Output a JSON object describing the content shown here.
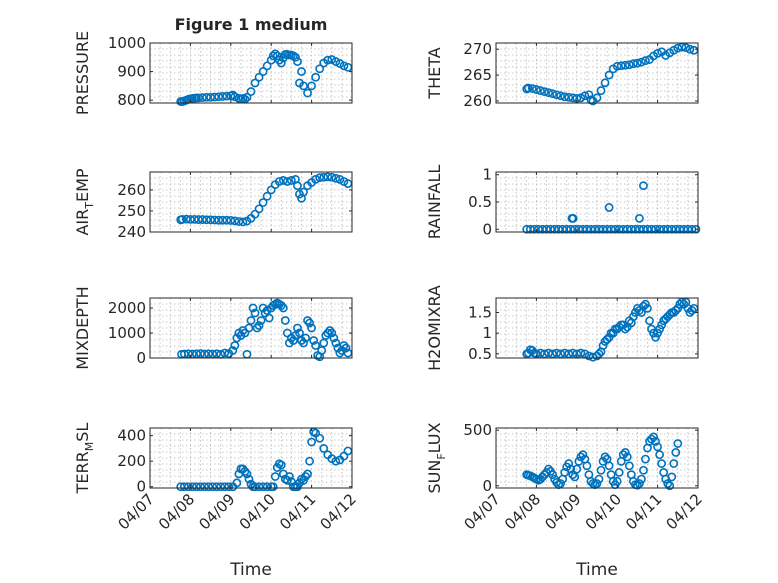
{
  "figure": {
    "title": "Figure 1 medium",
    "marker_color": "#0072BD",
    "xlabel": "Time"
  },
  "chart_data": [
    {
      "type": "scatter",
      "title": "Figure 1 medium",
      "ylabel": "PRESSURE",
      "xlabel": "",
      "xticks": [
        "04/07",
        "04/08",
        "04/09",
        "04/10",
        "04/11",
        "04/12"
      ],
      "xlim": [
        0,
        5
      ],
      "ylim": [
        790,
        1000
      ],
      "yticks": [
        800,
        900,
        1000
      ],
      "grid": true,
      "x": [
        0.76,
        0.8,
        0.85,
        0.9,
        0.95,
        1.0,
        1.05,
        1.1,
        1.15,
        1.2,
        1.3,
        1.4,
        1.5,
        1.6,
        1.7,
        1.8,
        1.9,
        2.0,
        2.05,
        2.1,
        2.2,
        2.25,
        2.3,
        2.35,
        2.4,
        2.5,
        2.6,
        2.7,
        2.8,
        2.9,
        3.0,
        3.05,
        3.1,
        3.15,
        3.2,
        3.25,
        3.3,
        3.35,
        3.4,
        3.45,
        3.5,
        3.55,
        3.6,
        3.65,
        3.7,
        3.75,
        3.8,
        3.9,
        4.0,
        4.1,
        4.2,
        4.3,
        4.4,
        4.5,
        4.6,
        4.7,
        4.8,
        4.9
      ],
      "y": [
        795,
        795,
        797,
        800,
        803,
        805,
        806,
        807,
        808,
        808,
        809,
        810,
        810,
        811,
        812,
        813,
        814,
        815,
        818,
        812,
        806,
        805,
        806,
        803,
        810,
        830,
        860,
        880,
        900,
        920,
        940,
        955,
        962,
        955,
        940,
        930,
        948,
        960,
        960,
        958,
        958,
        955,
        950,
        935,
        860,
        900,
        850,
        825,
        850,
        880,
        910,
        930,
        940,
        942,
        935,
        928,
        920,
        915
      ]
    },
    {
      "type": "scatter",
      "ylabel": "THETA",
      "xlabel": "",
      "xticks": [
        "04/07",
        "04/08",
        "04/09",
        "04/10",
        "04/11",
        "04/12"
      ],
      "xlim": [
        0,
        5
      ],
      "ylim": [
        259.6,
        271.2
      ],
      "yticks": [
        260,
        265,
        270
      ],
      "grid": true,
      "x": [
        0.76,
        0.8,
        0.9,
        1.0,
        1.1,
        1.2,
        1.3,
        1.4,
        1.5,
        1.6,
        1.7,
        1.8,
        1.9,
        2.0,
        2.1,
        2.2,
        2.3,
        2.35,
        2.4,
        2.5,
        2.6,
        2.7,
        2.8,
        2.9,
        3.0,
        3.1,
        3.2,
        3.3,
        3.4,
        3.5,
        3.6,
        3.7,
        3.8,
        3.9,
        4.0,
        4.1,
        4.2,
        4.3,
        4.4,
        4.5,
        4.6,
        4.7,
        4.8,
        4.9
      ],
      "y": [
        262.3,
        262.5,
        262.4,
        262.2,
        262.0,
        261.8,
        261.6,
        261.4,
        261.2,
        261.0,
        260.8,
        260.7,
        260.6,
        260.5,
        260.6,
        261.0,
        261.2,
        260.2,
        260.0,
        260.6,
        262.0,
        263.5,
        265.0,
        266.2,
        266.7,
        266.8,
        266.9,
        267.0,
        267.2,
        267.3,
        267.5,
        267.8,
        268.0,
        268.7,
        269.2,
        269.5,
        268.8,
        269.3,
        269.8,
        270.2,
        270.4,
        270.3,
        270.0,
        269.8
      ]
    },
    {
      "type": "scatter",
      "ylabel": "AIR_TEMP",
      "xlabel": "",
      "xticks": [
        "04/07",
        "04/08",
        "04/09",
        "04/10",
        "04/11",
        "04/12"
      ],
      "xlim": [
        0,
        5
      ],
      "ylim": [
        240,
        268.5
      ],
      "yticks": [
        240,
        250,
        260
      ],
      "grid": true,
      "x": [
        0.76,
        0.8,
        0.9,
        1.0,
        1.1,
        1.2,
        1.3,
        1.4,
        1.5,
        1.6,
        1.7,
        1.8,
        1.9,
        2.0,
        2.1,
        2.2,
        2.3,
        2.4,
        2.5,
        2.6,
        2.7,
        2.8,
        2.9,
        3.0,
        3.1,
        3.2,
        3.3,
        3.4,
        3.5,
        3.6,
        3.65,
        3.7,
        3.75,
        3.8,
        3.9,
        4.0,
        4.1,
        4.2,
        4.3,
        4.4,
        4.5,
        4.6,
        4.7,
        4.8,
        4.9
      ],
      "y": [
        245.8,
        246.0,
        246.1,
        246.0,
        246.0,
        245.9,
        245.9,
        245.8,
        245.8,
        245.7,
        245.6,
        245.6,
        245.6,
        245.5,
        245.3,
        245.0,
        244.8,
        245.2,
        246.5,
        248.5,
        251.0,
        254.0,
        257.0,
        260.0,
        262.5,
        264.0,
        264.5,
        264.0,
        264.5,
        265.0,
        262.0,
        258.0,
        256.0,
        259.0,
        262.0,
        263.5,
        265.0,
        265.8,
        266.0,
        266.2,
        266.0,
        265.5,
        265.0,
        264.0,
        263.0
      ]
    },
    {
      "type": "scatter",
      "ylabel": "RAINFALL",
      "xlabel": "",
      "xticks": [
        "04/07",
        "04/08",
        "04/09",
        "04/10",
        "04/11",
        "04/12"
      ],
      "xlim": [
        0,
        5
      ],
      "ylim": [
        -0.05,
        1.05
      ],
      "yticks": [
        0,
        0.5,
        1
      ],
      "grid": true,
      "x": [
        0.76,
        0.85,
        0.95,
        1.05,
        1.15,
        1.25,
        1.35,
        1.45,
        1.55,
        1.65,
        1.75,
        1.85,
        1.95,
        2.05,
        2.15,
        2.25,
        2.35,
        2.45,
        2.55,
        2.65,
        2.75,
        2.85,
        2.95,
        3.05,
        3.15,
        3.25,
        3.35,
        3.45,
        3.55,
        3.65,
        3.75,
        3.85,
        3.95,
        4.05,
        4.15,
        4.25,
        4.35,
        4.45,
        4.55,
        4.65,
        4.75,
        4.85,
        4.95,
        1.88,
        1.91,
        2.8,
        3.55,
        3.65
      ],
      "y": [
        0,
        0,
        0,
        0,
        0,
        0,
        0,
        0,
        0,
        0,
        0,
        0,
        0,
        0,
        0,
        0,
        0,
        0,
        0,
        0,
        0,
        0,
        0,
        0,
        0,
        0,
        0,
        0,
        0,
        0,
        0,
        0,
        0,
        0,
        0,
        0,
        0,
        0,
        0,
        0,
        0,
        0,
        0,
        0.2,
        0.2,
        0.4,
        0.2,
        0.8
      ]
    },
    {
      "type": "scatter",
      "ylabel": "MIXDEPTH",
      "xlabel": "",
      "xticks": [
        "04/07",
        "04/08",
        "04/09",
        "04/10",
        "04/11",
        "04/12"
      ],
      "xlim": [
        0,
        5
      ],
      "ylim": [
        0,
        2400
      ],
      "yticks": [
        0,
        1000,
        2000
      ],
      "grid": true,
      "x": [
        0.78,
        0.85,
        0.95,
        1.05,
        1.15,
        1.25,
        1.35,
        1.45,
        1.55,
        1.65,
        1.75,
        1.85,
        1.95,
        2.05,
        2.1,
        2.15,
        2.2,
        2.25,
        2.3,
        2.35,
        2.4,
        2.45,
        2.5,
        2.55,
        2.6,
        2.65,
        2.7,
        2.75,
        2.8,
        2.85,
        2.9,
        2.95,
        3.0,
        3.05,
        3.1,
        3.15,
        3.2,
        3.25,
        3.3,
        3.35,
        3.4,
        3.45,
        3.5,
        3.55,
        3.6,
        3.65,
        3.7,
        3.75,
        3.8,
        3.85,
        3.9,
        3.95,
        4.0,
        4.05,
        4.1,
        4.15,
        4.2,
        4.25,
        4.3,
        4.35,
        4.4,
        4.45,
        4.5,
        4.55,
        4.6,
        4.65,
        4.7,
        4.75,
        4.8,
        4.85,
        4.9
      ],
      "y": [
        150,
        160,
        170,
        160,
        170,
        180,
        160,
        170,
        160,
        170,
        150,
        200,
        180,
        300,
        500,
        800,
        1000,
        900,
        1100,
        1000,
        150,
        1200,
        1500,
        2000,
        1800,
        1200,
        1300,
        1500,
        2000,
        1800,
        1900,
        1600,
        2000,
        2100,
        2150,
        2200,
        2150,
        2100,
        2000,
        1500,
        1000,
        600,
        800,
        700,
        900,
        1200,
        1000,
        700,
        600,
        800,
        1500,
        1400,
        1200,
        700,
        500,
        100,
        50,
        300,
        600,
        900,
        1000,
        1100,
        1000,
        800,
        600,
        400,
        200,
        300,
        500,
        400,
        200
      ]
    },
    {
      "type": "scatter",
      "ylabel": "H2OMIXRA",
      "xlabel": "",
      "xticks": [
        "04/07",
        "04/08",
        "04/09",
        "04/10",
        "04/11",
        "04/12"
      ],
      "xlim": [
        0,
        5
      ],
      "ylim": [
        0.4,
        1.85
      ],
      "yticks": [
        0.5,
        1,
        1.5
      ],
      "grid": true,
      "x": [
        0.76,
        0.8,
        0.85,
        0.9,
        0.95,
        1.0,
        1.1,
        1.2,
        1.3,
        1.4,
        1.5,
        1.6,
        1.7,
        1.8,
        1.9,
        2.0,
        2.1,
        2.2,
        2.3,
        2.4,
        2.5,
        2.55,
        2.6,
        2.65,
        2.7,
        2.75,
        2.8,
        2.85,
        2.9,
        2.95,
        3.0,
        3.05,
        3.1,
        3.15,
        3.2,
        3.25,
        3.3,
        3.35,
        3.4,
        3.45,
        3.5,
        3.55,
        3.6,
        3.65,
        3.7,
        3.75,
        3.8,
        3.85,
        3.9,
        3.95,
        4.0,
        4.05,
        4.1,
        4.15,
        4.2,
        4.25,
        4.3,
        4.35,
        4.4,
        4.45,
        4.5,
        4.55,
        4.6,
        4.65,
        4.7,
        4.75,
        4.8,
        4.85,
        4.9
      ],
      "y": [
        0.5,
        0.52,
        0.6,
        0.58,
        0.52,
        0.5,
        0.52,
        0.5,
        0.52,
        0.5,
        0.52,
        0.5,
        0.52,
        0.5,
        0.52,
        0.5,
        0.52,
        0.5,
        0.45,
        0.42,
        0.45,
        0.5,
        0.55,
        0.7,
        0.8,
        0.85,
        0.9,
        1.0,
        1.0,
        1.1,
        1.1,
        1.15,
        1.2,
        1.2,
        1.1,
        1.15,
        1.3,
        1.25,
        1.4,
        1.5,
        1.6,
        1.55,
        1.5,
        1.65,
        1.7,
        1.6,
        1.3,
        1.1,
        1.0,
        0.9,
        1.0,
        1.1,
        1.2,
        1.3,
        1.35,
        1.4,
        1.45,
        1.5,
        1.5,
        1.55,
        1.6,
        1.7,
        1.75,
        1.7,
        1.75,
        1.6,
        1.5,
        1.55,
        1.6
      ]
    },
    {
      "type": "scatter",
      "ylabel": "TERR_MSL",
      "xlabel": "Time",
      "xticks": [
        "04/07",
        "04/08",
        "04/09",
        "04/10",
        "04/11",
        "04/12"
      ],
      "xlim": [
        0,
        5
      ],
      "ylim": [
        -10,
        460
      ],
      "yticks": [
        0,
        200,
        400
      ],
      "grid": true,
      "x": [
        0.76,
        0.85,
        0.95,
        1.05,
        1.15,
        1.25,
        1.35,
        1.45,
        1.55,
        1.65,
        1.75,
        1.85,
        1.95,
        2.05,
        2.15,
        2.2,
        2.25,
        2.3,
        2.35,
        2.4,
        2.45,
        2.5,
        2.55,
        2.6,
        2.7,
        2.8,
        2.9,
        3.0,
        3.05,
        3.1,
        3.15,
        3.2,
        3.25,
        3.3,
        3.35,
        3.4,
        3.45,
        3.5,
        3.55,
        3.6,
        3.65,
        3.7,
        3.75,
        3.8,
        3.85,
        3.9,
        3.95,
        4.0,
        4.05,
        4.1,
        4.2,
        4.3,
        4.4,
        4.5,
        4.6,
        4.7,
        4.8,
        4.9
      ],
      "y": [
        0,
        0,
        0,
        0,
        0,
        0,
        0,
        0,
        0,
        0,
        0,
        0,
        0,
        0,
        30,
        100,
        140,
        140,
        120,
        100,
        60,
        20,
        0,
        0,
        0,
        0,
        0,
        0,
        0,
        80,
        150,
        180,
        170,
        100,
        60,
        50,
        80,
        40,
        0,
        0,
        0,
        30,
        60,
        50,
        80,
        100,
        200,
        350,
        430,
        420,
        380,
        300,
        250,
        220,
        200,
        210,
        240,
        280
      ]
    },
    {
      "type": "scatter",
      "ylabel": "SUN_FLUX",
      "xlabel": "Time",
      "xticks": [
        "04/07",
        "04/08",
        "04/09",
        "04/10",
        "04/11",
        "04/12"
      ],
      "xlim": [
        0,
        5
      ],
      "ylim": [
        -20,
        520
      ],
      "yticks": [
        0,
        500
      ],
      "grid": true,
      "x": [
        0.76,
        0.8,
        0.85,
        0.9,
        0.95,
        1.0,
        1.05,
        1.1,
        1.15,
        1.2,
        1.25,
        1.3,
        1.35,
        1.4,
        1.45,
        1.5,
        1.55,
        1.6,
        1.65,
        1.7,
        1.75,
        1.8,
        1.85,
        1.9,
        1.95,
        2.0,
        2.05,
        2.1,
        2.15,
        2.2,
        2.25,
        2.3,
        2.35,
        2.4,
        2.45,
        2.5,
        2.55,
        2.6,
        2.65,
        2.7,
        2.75,
        2.8,
        2.85,
        2.9,
        2.95,
        3.0,
        3.05,
        3.1,
        3.15,
        3.2,
        3.25,
        3.3,
        3.35,
        3.4,
        3.45,
        3.5,
        3.55,
        3.6,
        3.65,
        3.7,
        3.75,
        3.8,
        3.85,
        3.9,
        3.95,
        4.0,
        4.05,
        4.1,
        4.15,
        4.2,
        4.25,
        4.3,
        4.35,
        4.4,
        4.45,
        4.5
      ],
      "y": [
        100,
        95,
        90,
        80,
        70,
        60,
        50,
        60,
        80,
        100,
        120,
        150,
        130,
        100,
        60,
        30,
        10,
        20,
        60,
        120,
        170,
        200,
        150,
        100,
        80,
        150,
        220,
        260,
        280,
        240,
        180,
        100,
        40,
        20,
        10,
        20,
        60,
        140,
        220,
        260,
        240,
        180,
        100,
        40,
        10,
        40,
        120,
        220,
        280,
        300,
        260,
        180,
        100,
        40,
        10,
        5,
        20,
        60,
        140,
        240,
        340,
        400,
        420,
        440,
        400,
        350,
        280,
        200,
        120,
        60,
        20,
        0,
        80,
        200,
        300,
        380
      ]
    }
  ]
}
